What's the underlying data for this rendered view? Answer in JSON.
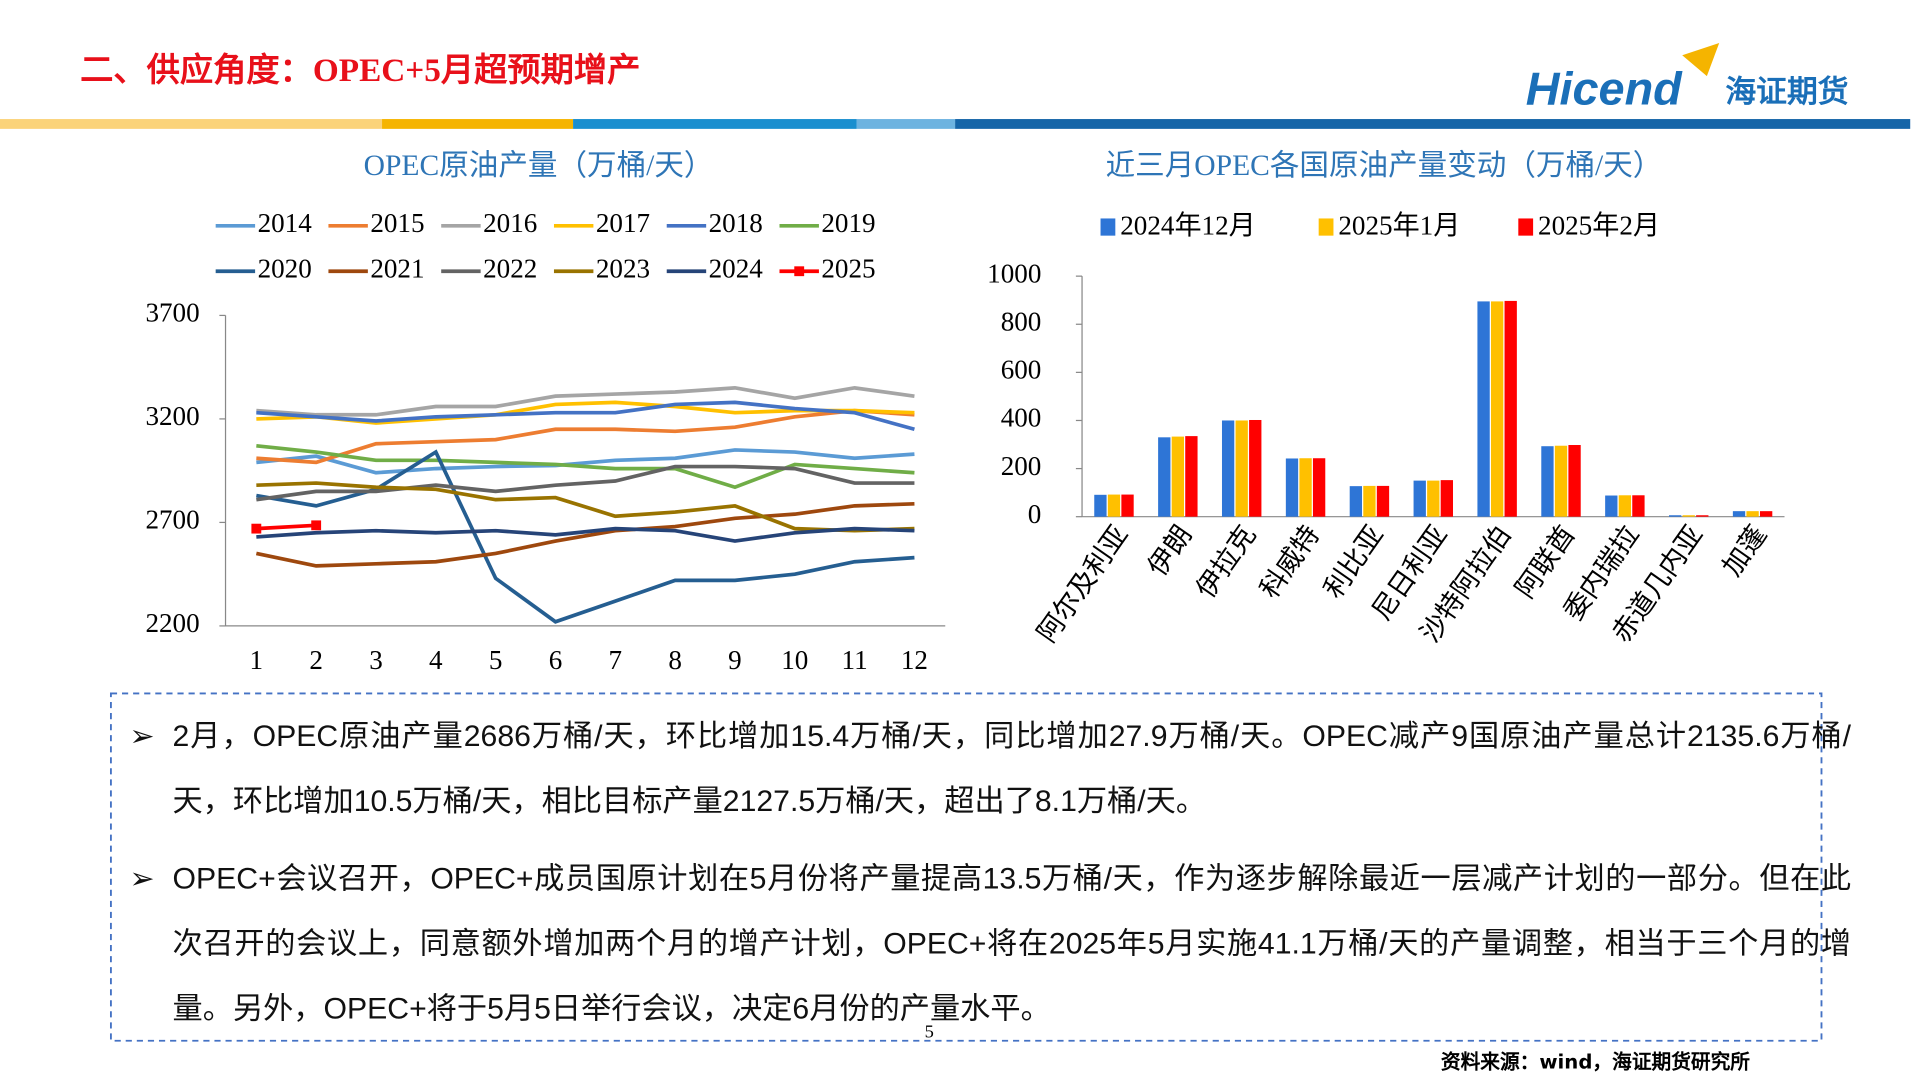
{
  "header": {
    "title": "二、供应角度：OPEC+5月超预期增产",
    "logo": "Hicend",
    "logo_cn": "海证期货"
  },
  "chart_data": [
    {
      "type": "line",
      "title": "OPEC原油产量（万桶/天）",
      "categories": [
        "1",
        "2",
        "3",
        "4",
        "5",
        "6",
        "7",
        "8",
        "9",
        "10",
        "11",
        "12"
      ],
      "ylim": [
        2200,
        3700
      ],
      "yticks": [
        2200,
        2700,
        3200,
        3700
      ],
      "series": [
        {
          "name": "2014",
          "color": "#5B9BD5",
          "values": [
            2990,
            3020,
            2940,
            2960,
            2970,
            2975,
            3000,
            3010,
            3050,
            3040,
            3010,
            3030
          ]
        },
        {
          "name": "2015",
          "color": "#ED7D31",
          "values": [
            3010,
            2990,
            3080,
            3090,
            3100,
            3150,
            3150,
            3140,
            3160,
            3210,
            3240,
            3220
          ]
        },
        {
          "name": "2016",
          "color": "#A5A5A5",
          "values": [
            3240,
            3220,
            3220,
            3260,
            3260,
            3310,
            3320,
            3330,
            3350,
            3300,
            3350,
            3310
          ]
        },
        {
          "name": "2017",
          "color": "#FFC000",
          "values": [
            3200,
            3210,
            3180,
            3200,
            3220,
            3270,
            3280,
            3260,
            3230,
            3240,
            3240,
            3230
          ]
        },
        {
          "name": "2018",
          "color": "#4472C4",
          "values": [
            3230,
            3210,
            3190,
            3210,
            3220,
            3230,
            3230,
            3270,
            3280,
            3250,
            3230,
            3150
          ]
        },
        {
          "name": "2019",
          "color": "#70AD47",
          "values": [
            3070,
            3040,
            3000,
            3000,
            2990,
            2980,
            2960,
            2960,
            2870,
            2980,
            2960,
            2940
          ]
        },
        {
          "name": "2020",
          "color": "#255E91",
          "values": [
            2830,
            2780,
            2860,
            3040,
            2430,
            2220,
            2320,
            2420,
            2420,
            2450,
            2510,
            2530
          ]
        },
        {
          "name": "2021",
          "color": "#9E480E",
          "values": [
            2550,
            2490,
            2500,
            2510,
            2550,
            2610,
            2660,
            2680,
            2720,
            2740,
            2780,
            2790
          ]
        },
        {
          "name": "2022",
          "color": "#636363",
          "values": [
            2810,
            2850,
            2850,
            2880,
            2850,
            2880,
            2900,
            2970,
            2970,
            2960,
            2890,
            2890
          ]
        },
        {
          "name": "2023",
          "color": "#997300",
          "values": [
            2880,
            2890,
            2870,
            2860,
            2810,
            2820,
            2730,
            2750,
            2780,
            2670,
            2660,
            2670
          ]
        },
        {
          "name": "2024",
          "color": "#264478",
          "values": [
            2630,
            2650,
            2660,
            2650,
            2660,
            2640,
            2670,
            2660,
            2610,
            2650,
            2670,
            2660
          ]
        },
        {
          "name": "2025",
          "color": "#FF0000",
          "markers": true,
          "values": [
            2670,
            2686,
            null,
            null,
            null,
            null,
            null,
            null,
            null,
            null,
            null,
            null
          ]
        }
      ]
    },
    {
      "type": "bar",
      "title": "近三月OPEC各国原油产量变动（万桶/天）",
      "categories": [
        "阿尔及利亚",
        "伊朗",
        "伊拉克",
        "科威特",
        "利比亚",
        "尼日利亚",
        "沙特阿拉伯",
        "阿联酋",
        "委内瑞拉",
        "赤道几内亚",
        "加蓬"
      ],
      "ylim": [
        0,
        1000
      ],
      "yticks": [
        0,
        200,
        400,
        600,
        800,
        1000
      ],
      "series": [
        {
          "name": "2024年12月",
          "color": "#2E75D6",
          "values": [
            91,
            330,
            400,
            242,
            127,
            150,
            895,
            293,
            88,
            6,
            23
          ]
        },
        {
          "name": "2025年1月",
          "color": "#FFC000",
          "values": [
            92,
            333,
            400,
            243,
            128,
            150,
            895,
            295,
            89,
            6,
            23
          ]
        },
        {
          "name": "2025年2月",
          "color": "#FF0000",
          "values": [
            92,
            335,
            402,
            243,
            128,
            152,
            897,
            298,
            89,
            6,
            23
          ]
        }
      ]
    }
  ],
  "bullets": [
    "2月，OPEC原油产量2686万桶/天，环比增加15.4万桶/天，同比增加27.9万桶/天。OPEC减产9国原油产量总计2135.6万桶/天，环比增加10.5万桶/天，相比目标产量2127.5万桶/天，超出了8.1万桶/天。",
    "OPEC+会议召开，OPEC+成员国原计划在5月份将产量提高13.5万桶/天，作为逐步解除最近一层减产计划的一部分。但在此次召开的会议上，同意额外增加两个月的增产计划，OPEC+将在2025年5月实施41.1万桶/天的产量调整，相当于三个月的增量。另外，OPEC+将于5月5日举行会议，决定6月份的产量水平。"
  ],
  "page_number": "5",
  "source": "资料来源：wind，海证期货研究所"
}
